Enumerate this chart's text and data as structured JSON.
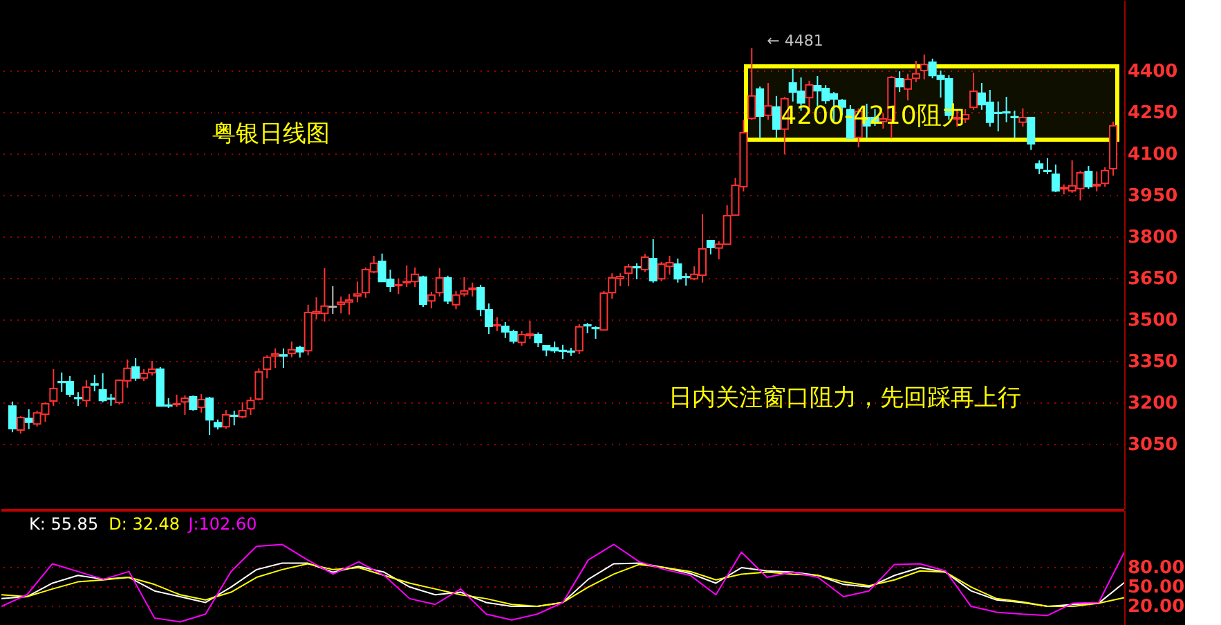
{
  "chart_data": [
    {
      "type": "candlestick",
      "categories": [
        null,
        null,
        null,
        null,
        null,
        null,
        null,
        null,
        null,
        null,
        null,
        null,
        null,
        null,
        null,
        null,
        null,
        null,
        null,
        null,
        null,
        null,
        null,
        null,
        null,
        null,
        null,
        null,
        null,
        null,
        null,
        null,
        null,
        null,
        null,
        null,
        null,
        null,
        null,
        null,
        null,
        null,
        null,
        null,
        null,
        null,
        null,
        null,
        null,
        null,
        null,
        null,
        null,
        null,
        null,
        null,
        null,
        null,
        null,
        null,
        null,
        null,
        null,
        null,
        null,
        null,
        null,
        null,
        null,
        null,
        null,
        null,
        null,
        null,
        null,
        null,
        null,
        null,
        null,
        null,
        null,
        null,
        null,
        null,
        null,
        null,
        null,
        null,
        null,
        null,
        null,
        null,
        null,
        null,
        null,
        null,
        null,
        null,
        null,
        null,
        null,
        null,
        null,
        null,
        null,
        null,
        null,
        null,
        null,
        null,
        null,
        null,
        null,
        null,
        null,
        null,
        null,
        null,
        null,
        null,
        null,
        null,
        null,
        null,
        null,
        null,
        null,
        null,
        null,
        null,
        null,
        null,
        null,
        null,
        null
      ],
      "ohlc": [
        [
          3187,
          3203,
          3092,
          3105
        ],
        [
          3100,
          3150,
          3087,
          3145
        ],
        [
          3142,
          3175,
          3103,
          3128
        ],
        [
          3122,
          3170,
          3113,
          3162
        ],
        [
          3157,
          3200,
          3130,
          3195
        ],
        [
          3205,
          3320,
          3187,
          3250
        ],
        [
          3275,
          3308,
          3238,
          3272
        ],
        [
          3275,
          3295,
          3220,
          3230
        ],
        [
          3217,
          3237,
          3187,
          3214
        ],
        [
          3207,
          3280,
          3183,
          3255
        ],
        [
          3267,
          3300,
          3240,
          3263
        ],
        [
          3245,
          3305,
          3200,
          3207
        ],
        [
          3215,
          3230,
          3188,
          3212
        ],
        [
          3200,
          3283,
          3192,
          3280
        ],
        [
          3278,
          3355,
          3253,
          3323
        ],
        [
          3328,
          3360,
          3278,
          3288
        ],
        [
          3288,
          3320,
          3277,
          3305
        ],
        [
          3307,
          3350,
          3297,
          3320
        ],
        [
          3320,
          3328,
          3187,
          3187
        ],
        [
          3190,
          3215,
          3180,
          3187
        ],
        [
          3192,
          3228,
          3183,
          3195
        ],
        [
          3202,
          3225,
          3155,
          3215
        ],
        [
          3220,
          3225,
          3170,
          3175
        ],
        [
          3182,
          3230,
          3163,
          3210
        ],
        [
          3215,
          3220,
          3082,
          3137
        ],
        [
          3127,
          3138,
          3102,
          3112
        ],
        [
          3112,
          3172,
          3105,
          3155
        ],
        [
          3153,
          3170,
          3117,
          3150
        ],
        [
          3148,
          3200,
          3142,
          3170
        ],
        [
          3177,
          3220,
          3155,
          3207
        ],
        [
          3212,
          3323,
          3207,
          3310
        ],
        [
          3320,
          3370,
          3287,
          3363
        ],
        [
          3368,
          3395,
          3325,
          3375
        ],
        [
          3372,
          3395,
          3325,
          3368
        ],
        [
          3377,
          3420,
          3363,
          3390
        ],
        [
          3398,
          3405,
          3362,
          3383
        ],
        [
          3387,
          3553,
          3370,
          3525
        ],
        [
          3522,
          3580,
          3500,
          3528
        ],
        [
          3522,
          3685,
          3492,
          3548
        ],
        [
          3545,
          3620,
          3520,
          3545
        ],
        [
          3555,
          3583,
          3522,
          3562
        ],
        [
          3563,
          3592,
          3517,
          3570
        ],
        [
          3585,
          3637,
          3562,
          3592
        ],
        [
          3597,
          3688,
          3578,
          3680
        ],
        [
          3672,
          3730,
          3667,
          3703
        ],
        [
          3710,
          3738,
          3637,
          3637
        ],
        [
          3645,
          3680,
          3600,
          3620
        ],
        [
          3622,
          3647,
          3592,
          3625
        ],
        [
          3633,
          3695,
          3617,
          3637
        ],
        [
          3637,
          3688,
          3617,
          3663
        ],
        [
          3653,
          3658,
          3545,
          3555
        ],
        [
          3567,
          3600,
          3540,
          3588
        ],
        [
          3597,
          3685,
          3583,
          3650
        ],
        [
          3650,
          3658,
          3555,
          3567
        ],
        [
          3553,
          3603,
          3537,
          3588
        ],
        [
          3592,
          3653,
          3583,
          3603
        ],
        [
          3608,
          3633,
          3583,
          3613
        ],
        [
          3615,
          3625,
          3512,
          3537
        ],
        [
          3535,
          3558,
          3447,
          3475
        ],
        [
          3477,
          3508,
          3458,
          3480
        ],
        [
          3475,
          3490,
          3433,
          3455
        ],
        [
          3455,
          3463,
          3413,
          3422
        ],
        [
          3417,
          3458,
          3405,
          3445
        ],
        [
          3442,
          3495,
          3430,
          3447
        ],
        [
          3445,
          3453,
          3400,
          3417
        ],
        [
          3405,
          3405,
          3367,
          3390
        ],
        [
          3397,
          3420,
          3378,
          3387
        ],
        [
          3388,
          3408,
          3357,
          3385
        ],
        [
          3385,
          3397,
          3368,
          3382
        ],
        [
          3387,
          3483,
          3375,
          3473
        ],
        [
          3480,
          3487,
          3450,
          3477
        ],
        [
          3470,
          3475,
          3430,
          3467
        ],
        [
          3462,
          3603,
          3462,
          3595
        ],
        [
          3597,
          3667,
          3575,
          3650
        ],
        [
          3648,
          3667,
          3620,
          3655
        ],
        [
          3667,
          3700,
          3620,
          3690
        ],
        [
          3690,
          3703,
          3645,
          3687
        ],
        [
          3680,
          3737,
          3672,
          3725
        ],
        [
          3720,
          3790,
          3633,
          3640
        ],
        [
          3647,
          3708,
          3638,
          3700
        ],
        [
          3692,
          3730,
          3662,
          3705
        ],
        [
          3700,
          3720,
          3633,
          3647
        ],
        [
          3655,
          3667,
          3622,
          3652
        ],
        [
          3647,
          3692,
          3642,
          3663
        ],
        [
          3660,
          3880,
          3633,
          3755
        ],
        [
          3785,
          3785,
          3735,
          3760
        ],
        [
          3758,
          3783,
          3717,
          3772
        ],
        [
          3772,
          3913,
          3772,
          3875
        ],
        [
          3877,
          4012,
          3877,
          3985
        ],
        [
          3980,
          4222,
          3963,
          4175
        ],
        [
          4227,
          4481,
          4222,
          4308
        ],
        [
          4333,
          4342,
          4155,
          4235
        ],
        [
          4238,
          4355,
          4222,
          4272
        ],
        [
          4268,
          4308,
          4155,
          4188
        ],
        [
          4188,
          4305,
          4097,
          4298
        ],
        [
          4355,
          4405,
          4288,
          4322
        ],
        [
          4325,
          4375,
          4255,
          4283
        ],
        [
          4302,
          4363,
          4243,
          4348
        ],
        [
          4345,
          4380,
          4272,
          4327
        ],
        [
          4335,
          4347,
          4280,
          4292
        ],
        [
          4315,
          4322,
          4217,
          4297
        ],
        [
          4292,
          4297,
          4238,
          4268
        ],
        [
          4258,
          4275,
          4155,
          4155
        ],
        [
          4158,
          4263,
          4122,
          4252
        ],
        [
          4230,
          4280,
          4155,
          4200
        ],
        [
          4230,
          4260,
          4200,
          4215
        ],
        [
          4215,
          4245,
          4190,
          4225
        ],
        [
          4222,
          4380,
          4155,
          4375
        ],
        [
          4370,
          4397,
          4322,
          4342
        ],
        [
          4333,
          4388,
          4292,
          4368
        ],
        [
          4372,
          4435,
          4358,
          4388
        ],
        [
          4400,
          4458,
          4368,
          4422
        ],
        [
          4430,
          4443,
          4372,
          4382
        ],
        [
          4382,
          4400,
          4302,
          4368
        ],
        [
          4370,
          4383,
          4222,
          4238
        ],
        [
          4225,
          4255,
          4197,
          4230
        ],
        [
          4225,
          4260,
          4210,
          4240
        ],
        [
          4267,
          4392,
          4258,
          4325
        ],
        [
          4318,
          4355,
          4258,
          4277
        ],
        [
          4285,
          4330,
          4197,
          4213
        ],
        [
          4248,
          4288,
          4180,
          4245
        ],
        [
          4250,
          4305,
          4213,
          4247
        ],
        [
          4233,
          4255,
          4155,
          4230
        ],
        [
          4213,
          4263,
          4197,
          4230
        ],
        [
          4230,
          4230,
          4113,
          4135
        ],
        [
          4062,
          4075,
          4025,
          4047
        ],
        [
          4038,
          4083,
          4025,
          4035
        ],
        [
          4025,
          4060,
          3960,
          3965
        ],
        [
          3972,
          3988,
          3952,
          3977
        ],
        [
          3965,
          4075,
          3958,
          3983
        ],
        [
          3973,
          4038,
          3930,
          4030
        ],
        [
          4035,
          4055,
          3972,
          3980
        ],
        [
          3983,
          4035,
          3963,
          3988
        ],
        [
          3992,
          4050,
          3980,
          4038
        ],
        [
          4045,
          4215,
          4020,
          4200
        ]
      ],
      "ylim": [
        2815,
        4655
      ],
      "yticks": [
        3050,
        3200,
        3350,
        3500,
        3650,
        3800,
        3950,
        4100,
        4250,
        4400
      ],
      "grid": "y",
      "tick_labels": "y",
      "bands": [
        {
          "axis": "y",
          "from": 4150,
          "to": 4415,
          "label": "4200-4210阻力",
          "color": "#ffff00"
        }
      ],
      "annotations": [
        "粤银日线图",
        "← 4481",
        "日内关注窗口阻力，先回踩再上行"
      ]
    },
    {
      "type": "line",
      "categories": [
        null,
        null,
        null,
        null,
        null,
        null,
        null,
        null,
        null,
        null,
        null,
        null,
        null,
        null,
        null,
        null,
        null,
        null,
        null,
        null,
        null,
        null,
        null,
        null,
        null,
        null,
        null,
        null,
        null,
        null,
        null,
        null,
        null,
        null,
        null,
        null,
        null,
        null,
        null,
        null,
        null,
        null,
        null,
        null,
        null
      ],
      "series": [
        {
          "name": "K: 55.85",
          "color": "#ffffff",
          "values": [
            31,
            34,
            55,
            67,
            61,
            64,
            43,
            34,
            25,
            49,
            76,
            86,
            86,
            72,
            81,
            72,
            49,
            37,
            41,
            25,
            19,
            19,
            25,
            61,
            85,
            86,
            79,
            70,
            55,
            79,
            74,
            72,
            67,
            53,
            49,
            67,
            79,
            72,
            43,
            29,
            25,
            19,
            22,
            24,
            55.85
          ]
        },
        {
          "name": "D: 32.48",
          "color": "#ffff00",
          "values": [
            37,
            34,
            46,
            57,
            60,
            64,
            53,
            37,
            29,
            41,
            64,
            76,
            85,
            76,
            79,
            67,
            55,
            46,
            37,
            31,
            22,
            19,
            25,
            49,
            69,
            84,
            79,
            73,
            60,
            69,
            72,
            69,
            67,
            57,
            51,
            60,
            74,
            72,
            49,
            31,
            26,
            19,
            19,
            24,
            32.48
          ]
        },
        {
          "name": "J:102.60",
          "color": "#ff00ff",
          "values": [
            19,
            37,
            85,
            73,
            61,
            73,
            1,
            -5,
            7,
            73,
            112,
            115,
            91,
            69,
            88,
            67,
            31,
            22,
            46,
            7,
            -2,
            7,
            25,
            91,
            115,
            88,
            76,
            67,
            37,
            103,
            64,
            72,
            64,
            34,
            43,
            84,
            85,
            74,
            19,
            10,
            7,
            5,
            24,
            25,
            102.6
          ]
        }
      ],
      "ylim": [
        -12,
        168
      ],
      "yticks": [
        {
          "value": 20,
          "label": "20.00"
        },
        {
          "value": 50,
          "label": "50.00"
        },
        {
          "value": 80,
          "label": "80.00"
        }
      ],
      "grid": "y",
      "tick_labels": "y",
      "legend": "top left",
      "line_style": "solid",
      "marker": "none"
    }
  ]
}
